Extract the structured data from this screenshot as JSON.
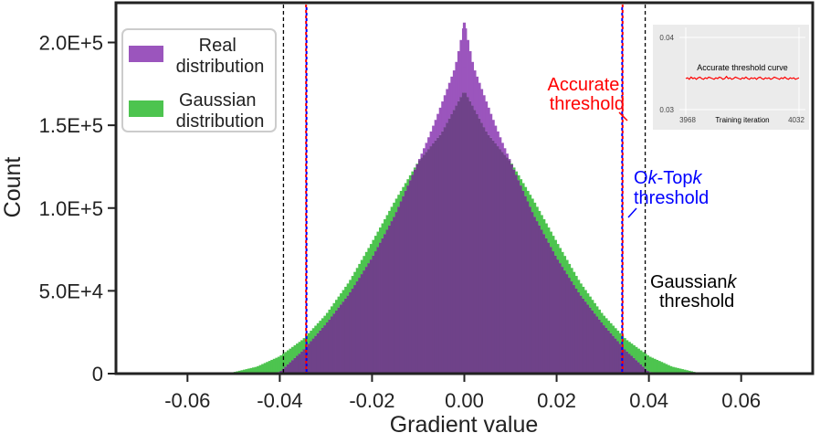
{
  "chart_data": {
    "type": "histogram",
    "xlabel": "Gradient value",
    "ylabel": "Count",
    "xlim": [
      -0.0755,
      0.0755
    ],
    "ylim": [
      0,
      224000
    ],
    "x_ticks": [
      -0.06,
      -0.04,
      -0.02,
      0.0,
      0.02,
      0.04,
      0.06
    ],
    "x_tick_labels": [
      "-0.06",
      "-0.04",
      "-0.02",
      "0.00",
      "0.02",
      "0.04",
      "0.06"
    ],
    "y_ticks": [
      0,
      50000,
      100000,
      150000,
      200000
    ],
    "y_tick_labels": [
      "0",
      "5.0E+4",
      "1.0E+5",
      "1.5E+5",
      "2.0E+5"
    ],
    "legend_position": "top-left",
    "series": [
      {
        "name": "Real\ndistribution",
        "color": "#9b55bd",
        "overlap_color": "#6f4289",
        "x": [
          -0.05,
          -0.045,
          -0.04,
          -0.035,
          -0.03,
          -0.025,
          -0.02,
          -0.015,
          -0.01,
          -0.008,
          -0.006,
          -0.004,
          -0.002,
          -0.001,
          0.0,
          0.001,
          0.002,
          0.004,
          0.006,
          0.008,
          0.01,
          0.015,
          0.02,
          0.025,
          0.03,
          0.035,
          0.04,
          0.045,
          0.05
        ],
        "counts": [
          0,
          0,
          1000,
          14000,
          30000,
          48000,
          70000,
          96000,
          128000,
          141000,
          155000,
          170000,
          185000,
          198000,
          212000,
          198000,
          185000,
          170000,
          155000,
          141000,
          128000,
          96000,
          70000,
          48000,
          30000,
          14000,
          1000,
          0,
          0
        ]
      },
      {
        "name": "Gaussian\ndistribution",
        "color": "#4dc44f",
        "x": [
          -0.05,
          -0.045,
          -0.04,
          -0.035,
          -0.03,
          -0.025,
          -0.02,
          -0.015,
          -0.01,
          -0.005,
          0.0,
          0.005,
          0.01,
          0.015,
          0.02,
          0.025,
          0.03,
          0.035,
          0.04,
          0.045,
          0.05
        ],
        "counts": [
          900,
          4200,
          10500,
          20700,
          35700,
          55400,
          79500,
          104500,
          128000,
          145000,
          171000,
          145000,
          128000,
          104500,
          79500,
          55400,
          35700,
          20700,
          10500,
          4200,
          900
        ]
      }
    ],
    "thresholds": [
      {
        "name": "Gaussiank threshold",
        "x": -0.0392,
        "color": "#000000"
      },
      {
        "name": "Gaussiank threshold",
        "x": 0.0392,
        "color": "#000000"
      },
      {
        "name": "Accurate threshold",
        "x": -0.0343,
        "color": "#ff0000"
      },
      {
        "name": "Accurate threshold",
        "x": 0.0343,
        "color": "#ff0000"
      },
      {
        "name": "Ok-Topk threshold",
        "x": -0.0342,
        "color": "#0000ff"
      },
      {
        "name": "Ok-Topk threshold",
        "x": 0.0342,
        "color": "#0000ff"
      }
    ],
    "annotations": {
      "accurate": {
        "lines": [
          "Accurate",
          "threshold"
        ],
        "color": "#ff0000"
      },
      "oktopk": {
        "line1_parts": [
          "O",
          "k",
          "-Top",
          "k"
        ],
        "line2": "threshold",
        "color": "#0000ff"
      },
      "gaussian": {
        "line1_parts": [
          "Gaussian",
          "k"
        ],
        "line2": "threshold",
        "color": "#000000"
      }
    },
    "inset": {
      "title": "Accurate threshold curve",
      "xlabel": "Training iteration",
      "x_tick_labels": [
        "3968",
        "4032"
      ],
      "y_tick_labels": [
        "0.04",
        "0.03"
      ],
      "xlim": [
        3968,
        4032
      ],
      "ylim": [
        0.03,
        0.04
      ],
      "line_color": "#ff0000",
      "values": [
        0.0343,
        0.0344,
        0.0342,
        0.0345,
        0.0343,
        0.0344,
        0.0342,
        0.0344,
        0.0345,
        0.0343,
        0.0342,
        0.0344,
        0.0343,
        0.0345,
        0.0344,
        0.0343,
        0.0342,
        0.0344,
        0.0343,
        0.0345,
        0.0344,
        0.0342,
        0.0343,
        0.0346,
        0.0343,
        0.0344,
        0.0342,
        0.0343,
        0.0345,
        0.0344,
        0.0343,
        0.0342,
        0.0344,
        0.0343,
        0.0345,
        0.0343,
        0.0342,
        0.0344,
        0.0343,
        0.0344,
        0.0342,
        0.0344,
        0.0345,
        0.0343,
        0.0342,
        0.0344,
        0.0343,
        0.0344,
        0.0342,
        0.0343,
        0.0345,
        0.0344,
        0.0343,
        0.0342,
        0.0344,
        0.0343,
        0.0345,
        0.0343,
        0.0342,
        0.0344,
        0.0343,
        0.0344,
        0.0342,
        0.0343,
        0.0344
      ]
    }
  }
}
